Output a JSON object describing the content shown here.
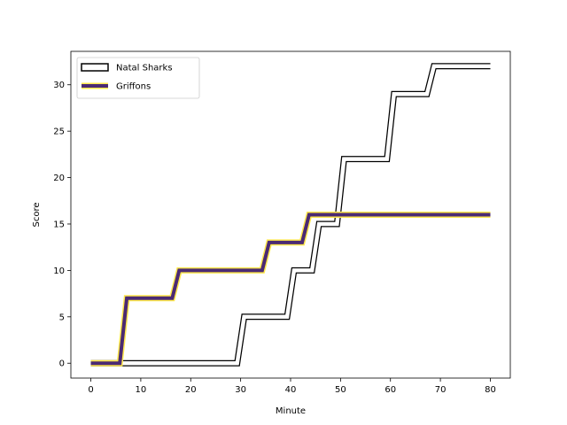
{
  "chart_data": {
    "type": "line",
    "title": "",
    "xlabel": "Minute",
    "ylabel": "Score",
    "xlim": [
      -4,
      84
    ],
    "ylim": [
      -1.6,
      33.6
    ],
    "xticks": [
      0,
      10,
      20,
      30,
      40,
      50,
      60,
      70,
      80
    ],
    "yticks": [
      0,
      5,
      10,
      15,
      20,
      25,
      30
    ],
    "grid": false,
    "legend": "top-left",
    "step": "post",
    "series": [
      {
        "name": "Natal Sharks",
        "style": "outlined",
        "color": "#ffffff",
        "edge_color": "#000000",
        "x": [
          0,
          30,
          40,
          45,
          50,
          60,
          68,
          80
        ],
        "y": [
          0,
          5,
          10,
          15,
          22,
          29,
          32,
          32
        ]
      },
      {
        "name": "Griffons",
        "style": "outlined",
        "color": "#4b2a73",
        "edge_color": "#ffe84d",
        "x": [
          0,
          6.5,
          17,
          35,
          43,
          80
        ],
        "y": [
          0,
          7,
          10,
          13,
          16,
          16
        ]
      }
    ]
  }
}
